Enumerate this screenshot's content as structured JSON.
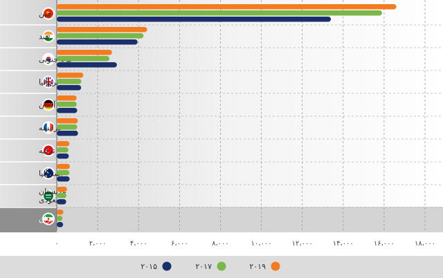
{
  "chart_data": {
    "type": "bar",
    "orientation": "horizontal",
    "title": "",
    "xlabel": "",
    "ylabel": "",
    "xlim": [
      0,
      18000
    ],
    "grid": true,
    "legend_position": "bottom",
    "categories": [
      "چین",
      "هند",
      "کره جنوبی",
      "بریتانیا",
      "آلمان",
      "فرانسه",
      "ترکیه",
      "استرالیا",
      "عربستان سعودی",
      "ایران"
    ],
    "highlight_category": "ایران",
    "flag_icons": [
      "china-flag-icon",
      "india-flag-icon",
      "south-korea-flag-icon",
      "uk-flag-icon",
      "germany-flag-icon",
      "france-flag-icon",
      "turkey-flag-icon",
      "australia-flag-icon",
      "saudi-arabia-flag-icon",
      "iran-flag-icon"
    ],
    "ticks": [
      0,
      2000,
      4000,
      6000,
      8000,
      10000,
      12000,
      14000,
      16000,
      18000
    ],
    "tick_labels": [
      "۰",
      "۲،۰۰۰",
      "۴،۰۰۰",
      "۶،۰۰۰",
      "۸،۰۰۰",
      "۱۰،۰۰۰",
      "۱۲،۰۰۰",
      "۱۴،۰۰۰",
      "۱۶،۰۰۰",
      "۱۸،۰۰۰"
    ],
    "series": [
      {
        "name": "۲۰۱۹",
        "color": "#f47b20",
        "values": [
          16600,
          4420,
          2700,
          1300,
          970,
          1030,
          620,
          640,
          500,
          320
        ]
      },
      {
        "name": "۲۰۱۷",
        "color": "#7ab648",
        "values": [
          15900,
          4240,
          2570,
          1200,
          970,
          1000,
          570,
          620,
          470,
          280
        ]
      },
      {
        "name": "۲۰۱۵",
        "color": "#1a2f6b",
        "values": [
          13400,
          3950,
          2940,
          1190,
          1000,
          1040,
          590,
          630,
          460,
          310
        ]
      }
    ],
    "legend_order": [
      "۲۰۱۹",
      "۲۰۱۷",
      "۲۰۱۵"
    ]
  }
}
